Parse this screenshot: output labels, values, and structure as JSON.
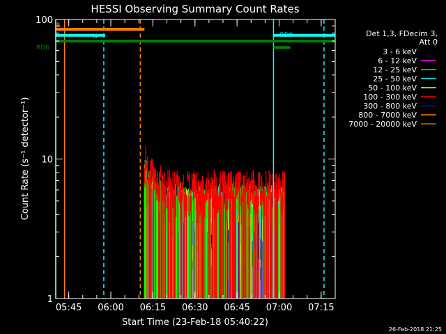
{
  "chart_data": {
    "type": "line",
    "title": "HESSI Observing Summary Count Rates",
    "xlabel": "Start Time (23-Feb-18 05:40:22)",
    "ylabel": "Count Rate (s⁻¹ detector⁻¹)",
    "yscale": "log",
    "ylim": [
      1,
      100
    ],
    "xlim": [
      "05:40:22",
      "07:20:00"
    ],
    "x_ticks": [
      "05:45",
      "06:00",
      "06:15",
      "06:30",
      "06:45",
      "07:00",
      "07:15"
    ],
    "y_ticks": [
      "1",
      "10",
      "100"
    ],
    "legend_header": [
      "Det 1,3, FDecim 3,",
      "Att 0"
    ],
    "legend_placement": "right",
    "series": [
      {
        "name": "3 - 6 keV",
        "color": "#000000",
        "level": null
      },
      {
        "name": "6 - 12 keV",
        "color": "#ff00ff",
        "level": 1.5
      },
      {
        "name": "12 - 25 keV",
        "color": "#00ff00",
        "level": 5.5
      },
      {
        "name": "25 - 50 keV",
        "color": "#00ffff",
        "level": 5.2
      },
      {
        "name": "50 - 100 keV",
        "color": "#ffff00",
        "level": 5.0
      },
      {
        "name": "100 - 300 keV",
        "color": "#ff0000",
        "level": 6.8
      },
      {
        "name": "300 - 800 keV",
        "color": "#0000ff",
        "level": 3.6
      },
      {
        "name": "800 - 7000 keV",
        "color": "#ff8000",
        "level": 2.3
      },
      {
        "name": "7000 - 20000 keV",
        "color": "#b07000",
        "level": null
      }
    ],
    "data_interval": {
      "start": "06:12",
      "end": "07:02"
    },
    "flag_bars": [
      {
        "label": "S",
        "color": "#ff8000",
        "value": 85,
        "start": "05:40:22",
        "end": "06:12"
      },
      {
        "label": "N",
        "color": "#00ffff",
        "value": 77,
        "start": "05:40:22",
        "end": "05:58"
      },
      {
        "label": "RD6",
        "color": "#008000",
        "value": 70,
        "start": "05:40:22",
        "end": "07:20:00"
      },
      {
        "label": "RD0",
        "color": "#00ffff",
        "value": 77,
        "start": "06:58",
        "end": "07:20:00"
      },
      {
        "label": "",
        "color": "#008000",
        "value": 63,
        "start": "06:58",
        "end": "07:04"
      }
    ],
    "vlines": [
      {
        "t": "05:40:22",
        "color": "#00ffff",
        "style": "solid"
      },
      {
        "t": "05:43:30",
        "color": "#ff8000",
        "style": "solid"
      },
      {
        "t": "05:57:30",
        "color": "#00ffff",
        "style": "dashed"
      },
      {
        "t": "06:10:30",
        "color": "#ff8000",
        "style": "dashed"
      },
      {
        "t": "06:58",
        "color": "#00ffff",
        "style": "solid"
      },
      {
        "t": "07:16",
        "color": "#00ffff",
        "style": "dashed"
      }
    ],
    "grid": false
  },
  "footer": {
    "date": "26-Feb-2018 21:25"
  }
}
